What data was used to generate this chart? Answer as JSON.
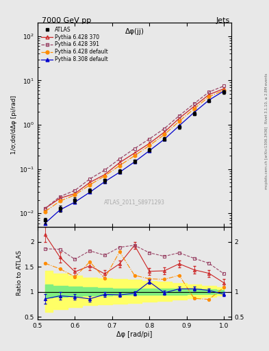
{
  "title_top": "7000 GeV pp",
  "title_right": "Jets",
  "title_center": "Δφ(jj)",
  "watermark": "ATLAS_2011_S8971293",
  "ylabel_main": "1/σ;dσ/dΔφ [pi/rad]",
  "ylabel_ratio": "Ratio to ATLAS",
  "xlabel": "Δφ [rad/pi]",
  "rivet_label": "Rivet 3.1.10, ≥ 2.8M events",
  "mcplots_label": "mcplots.cern.ch [arXiv:1306.3436]",
  "xlim": [
    0.5,
    1.02
  ],
  "ylim_main": [
    0.005,
    200
  ],
  "ylim_ratio": [
    0.45,
    2.3
  ],
  "atlas_x": [
    0.52,
    0.56,
    0.6,
    0.64,
    0.68,
    0.72,
    0.76,
    0.8,
    0.84,
    0.88,
    0.92,
    0.96,
    1.0
  ],
  "atlas_y": [
    0.007,
    0.013,
    0.02,
    0.033,
    0.055,
    0.09,
    0.15,
    0.27,
    0.48,
    0.9,
    1.8,
    3.5,
    5.5
  ],
  "atlas_yerr": [
    0.001,
    0.002,
    0.003,
    0.004,
    0.006,
    0.009,
    0.015,
    0.025,
    0.045,
    0.08,
    0.16,
    0.3,
    0.45
  ],
  "py6_370_x": [
    0.52,
    0.56,
    0.6,
    0.64,
    0.68,
    0.72,
    0.76,
    0.8,
    0.84,
    0.88,
    0.92,
    0.96,
    1.0
  ],
  "py6_370_y": [
    0.013,
    0.022,
    0.028,
    0.05,
    0.075,
    0.14,
    0.23,
    0.38,
    0.68,
    1.4,
    2.6,
    4.8,
    6.5
  ],
  "py6_391_x": [
    0.52,
    0.56,
    0.6,
    0.64,
    0.68,
    0.72,
    0.76,
    0.8,
    0.84,
    0.88,
    0.92,
    0.96,
    1.0
  ],
  "py6_391_y": [
    0.013,
    0.024,
    0.033,
    0.06,
    0.095,
    0.17,
    0.29,
    0.48,
    0.82,
    1.6,
    3.0,
    5.5,
    7.5
  ],
  "py6_def_x": [
    0.52,
    0.56,
    0.6,
    0.64,
    0.68,
    0.72,
    0.76,
    0.8,
    0.84,
    0.88,
    0.92,
    0.96,
    1.0
  ],
  "py6_def_y": [
    0.011,
    0.019,
    0.026,
    0.044,
    0.07,
    0.12,
    0.2,
    0.34,
    0.6,
    1.2,
    2.3,
    4.3,
    6.0
  ],
  "py8_def_x": [
    0.52,
    0.56,
    0.6,
    0.64,
    0.68,
    0.72,
    0.76,
    0.8,
    0.84,
    0.88,
    0.92,
    0.96,
    1.0
  ],
  "py8_def_y": [
    0.006,
    0.012,
    0.018,
    0.03,
    0.052,
    0.085,
    0.145,
    0.26,
    0.47,
    0.95,
    1.9,
    3.6,
    5.8
  ],
  "ratio_py6_370": [
    2.14,
    1.69,
    1.4,
    1.52,
    1.36,
    1.56,
    1.93,
    1.41,
    1.42,
    1.56,
    1.44,
    1.37,
    1.18
  ],
  "ratio_py6_391": [
    1.86,
    1.85,
    1.65,
    1.82,
    1.73,
    1.89,
    1.93,
    1.78,
    1.71,
    1.78,
    1.67,
    1.57,
    1.36
  ],
  "ratio_py6_def": [
    1.57,
    1.46,
    1.3,
    1.6,
    1.27,
    1.8,
    1.33,
    1.26,
    1.25,
    1.33,
    0.87,
    0.85,
    1.09
  ],
  "ratio_py8_def": [
    0.86,
    0.92,
    0.9,
    0.86,
    0.95,
    0.94,
    0.97,
    1.2,
    0.98,
    1.06,
    1.06,
    1.03,
    0.95
  ],
  "ratio_py8_yerr": [
    0.09,
    0.07,
    0.06,
    0.05,
    0.05,
    0.04,
    0.04,
    0.04,
    0.04,
    0.04,
    0.04,
    0.04,
    0.04
  ],
  "ratio_py6_370_yerr": [
    0.15,
    0.1,
    0.08,
    0.08,
    0.07,
    0.07,
    0.07,
    0.07,
    0.07,
    0.07,
    0.07,
    0.07,
    0.07
  ],
  "band_green_lo": [
    0.88,
    0.9,
    0.92,
    0.93,
    0.93,
    0.94,
    0.94,
    0.94,
    0.94,
    0.94,
    0.95,
    0.96,
    0.97
  ],
  "band_green_hi": [
    1.14,
    1.12,
    1.1,
    1.09,
    1.08,
    1.07,
    1.07,
    1.07,
    1.07,
    1.07,
    1.06,
    1.05,
    1.04
  ],
  "band_yellow_lo": [
    0.6,
    0.66,
    0.7,
    0.73,
    0.75,
    0.77,
    0.78,
    0.8,
    0.82,
    0.84,
    0.87,
    0.9,
    0.93
  ],
  "band_yellow_hi": [
    1.42,
    1.36,
    1.32,
    1.29,
    1.27,
    1.25,
    1.24,
    1.22,
    1.2,
    1.18,
    1.15,
    1.12,
    1.09
  ],
  "color_atlas": "#000000",
  "color_py6_370": "#cc2222",
  "color_py6_391": "#994466",
  "color_py6_def": "#ff8c00",
  "color_py8_def": "#0000cc",
  "color_green": "#80ee80",
  "color_yellow": "#ffff66",
  "bg_color": "#e8e8e8"
}
